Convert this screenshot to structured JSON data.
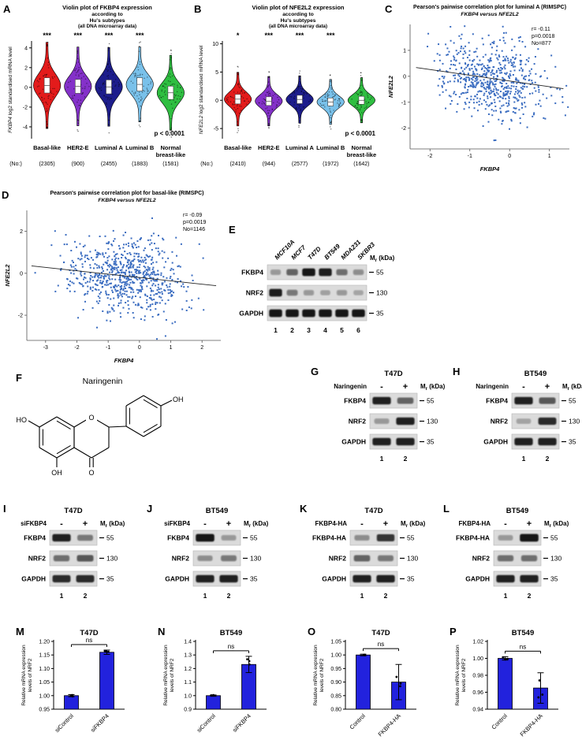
{
  "A": {
    "panel_label": "A",
    "chart_data": {
      "type": "violin",
      "title_lines": [
        "Violin plot of FKBP4 expression",
        "according to",
        "Hu's subtypes",
        "(all DNA microarray data)"
      ],
      "ylabel": "FKBP4 log2 standardised mRNA level",
      "categories": [
        "Basal-like",
        "HER2-E",
        "Luminal A",
        "Luminal B",
        "Normal|breast-like"
      ],
      "counts_label": "(No:)",
      "counts": [
        "(2305)",
        "(900)",
        "(2455)",
        "(1883)",
        "(1581)"
      ],
      "significance": [
        "***",
        "***",
        "***",
        "***",
        ""
      ],
      "p_text": "p < 0.0001",
      "colors": [
        "#e31b1b",
        "#8431c9",
        "#1d1d8c",
        "#79c1ea",
        "#2fbe41"
      ],
      "ylim": [
        -5.2,
        4.7
      ],
      "yticks": [
        -4,
        -2,
        0,
        2,
        4
      ],
      "means": [
        0.2,
        0.1,
        0.05,
        0.3,
        -0.55
      ],
      "sigmas": [
        1.15,
        1.05,
        1.05,
        1.0,
        1.0
      ],
      "seed": 11
    }
  },
  "B": {
    "panel_label": "B",
    "chart_data": {
      "type": "violin",
      "title_lines": [
        "Violin plot of NFE2L2 expression",
        "according to",
        "Hu's subtypes",
        "(all DNA microarray data)"
      ],
      "ylabel": "NFE2L2 log2 standardised mRNA level",
      "categories": [
        "Basal-like",
        "HER2-E",
        "Luminal A",
        "Luminal B",
        "Normal|breast-like"
      ],
      "counts_label": "(No:)",
      "counts": [
        "(2410)",
        "(944)",
        "(2577)",
        "(1972)",
        "(1642)"
      ],
      "significance": [
        "*",
        "***",
        "***",
        "***",
        ""
      ],
      "p_text": "p < 0.0001",
      "colors": [
        "#e31b1b",
        "#8431c9",
        "#1d1d8c",
        "#79c1ea",
        "#2fbe41"
      ],
      "ylim": [
        -6.8,
        10.5
      ],
      "yticks": [
        -5,
        0,
        5,
        10
      ],
      "means": [
        0.2,
        -0.15,
        0.15,
        -0.3,
        0.0
      ],
      "sigmas": [
        1.25,
        1.15,
        1.1,
        1.05,
        1.05
      ],
      "seed": 23
    }
  },
  "C": {
    "panel_label": "C",
    "chart_data": {
      "type": "scatter",
      "title_lines": [
        "Pearson's pairwise correlation plot for luminal A (RIMSPC)",
        "FKBP4 versus NFE2L2"
      ],
      "stats": [
        "r= -0.11",
        "p=0.0018",
        "No=877"
      ],
      "xlabel": "FKBP4",
      "ylabel": "NFE2L2",
      "xlim": [
        -2.5,
        1.5
      ],
      "ylim": [
        -2.8,
        2.0
      ],
      "xticks": [
        -2,
        -1,
        0,
        1
      ],
      "yticks": [
        -2,
        -1,
        0,
        1
      ],
      "n_points": 620,
      "x_mean": -0.45,
      "x_sd": 0.62,
      "slope": -0.22,
      "intercept": -0.18,
      "noise_sd": 0.75,
      "point_color": "#3a6cc0",
      "seed": 7
    }
  },
  "D": {
    "panel_label": "D",
    "chart_data": {
      "type": "scatter",
      "title_lines": [
        "Pearson's pairwise correlation plot for basal-like (RIMSPC)",
        "FKBP4 versus NFE2L2"
      ],
      "stats": [
        "r= -0.09",
        "p=0.0019",
        "No=1146"
      ],
      "xlabel": "FKBP4",
      "ylabel": "NFE2L2",
      "xlim": [
        -3.6,
        2.6
      ],
      "ylim": [
        -3.2,
        3.0
      ],
      "xticks": [
        -3,
        -2,
        -1,
        0,
        1,
        2
      ],
      "yticks": [
        -2,
        0,
        2
      ],
      "n_points": 720,
      "x_mean": -0.5,
      "x_sd": 0.95,
      "slope": -0.16,
      "intercept": -0.2,
      "noise_sd": 0.9,
      "point_color": "#3a6cc0",
      "seed": 17
    }
  },
  "E": {
    "panel_label": "E",
    "blot": {
      "cell_lines": [
        "MCF10A",
        "MCF7",
        "T47D",
        "BT549",
        "MDA231",
        "SKBR3"
      ],
      "mr": {
        "main": "M",
        "sub": "r",
        "rest": " (kDa)"
      },
      "rows": [
        {
          "name": "FKBP4",
          "mw": "55",
          "bands": [
            0.3,
            0.55,
            0.95,
            0.92,
            0.5,
            0.35
          ]
        },
        {
          "name": "NRF2",
          "mw": "130",
          "bands": [
            0.92,
            0.45,
            0.3,
            0.22,
            0.3,
            0.2
          ]
        },
        {
          "name": "GAPDH",
          "mw": "35",
          "bands": [
            0.95,
            0.95,
            0.95,
            0.95,
            0.95,
            0.95
          ]
        }
      ],
      "lane_numbers": [
        "1",
        "2",
        "3",
        "4",
        "5",
        "6"
      ]
    }
  },
  "F": {
    "panel_label": "F",
    "molecule": {
      "title": "Naringenin",
      "labels": {
        "ho": "HO",
        "oh5": "OH",
        "ketone": "O",
        "ring_o": "O",
        "oh4": "OH"
      }
    }
  },
  "G": {
    "panel_label": "G",
    "blot": {
      "title": "T47D",
      "condition_label": "Naringenin",
      "conditions": [
        "-",
        "+"
      ],
      "mr": {
        "main": "M",
        "sub": "r",
        "rest": " (kDa)"
      },
      "rows": [
        {
          "name": "FKBP4",
          "mw": "55",
          "bands": [
            0.9,
            0.55
          ]
        },
        {
          "name": "NRF2",
          "mw": "130",
          "bands": [
            0.3,
            0.9
          ]
        },
        {
          "name": "GAPDH",
          "mw": "35",
          "bands": [
            0.9,
            0.9
          ]
        }
      ],
      "lane_numbers": [
        "1",
        "2"
      ]
    }
  },
  "H": {
    "panel_label": "H",
    "blot": {
      "title": "BT549",
      "condition_label": "Naringenin",
      "conditions": [
        "-",
        "+"
      ],
      "mr": {
        "main": "M",
        "sub": "r",
        "rest": " (kDa)"
      },
      "rows": [
        {
          "name": "FKBP4",
          "mw": "55",
          "bands": [
            0.9,
            0.6
          ]
        },
        {
          "name": "NRF2",
          "mw": "130",
          "bands": [
            0.25,
            0.85
          ]
        },
        {
          "name": "GAPDH",
          "mw": "35",
          "bands": [
            0.9,
            0.9
          ]
        }
      ],
      "lane_numbers": [
        "1",
        "2"
      ]
    }
  },
  "I": {
    "panel_label": "I",
    "blot": {
      "title": "T47D",
      "condition_label": "siFKBP4",
      "conditions": [
        "-",
        "+"
      ],
      "mr": {
        "main": "M",
        "sub": "r",
        "rest": " (kDa)"
      },
      "rows": [
        {
          "name": "FKBP4",
          "mw": "55",
          "bands": [
            0.9,
            0.45
          ]
        },
        {
          "name": "NRF2",
          "mw": "130",
          "bands": [
            0.5,
            0.6
          ]
        },
        {
          "name": "GAPDH",
          "mw": "35",
          "bands": [
            0.85,
            0.85
          ]
        }
      ],
      "lane_numbers": [
        "1",
        "2"
      ]
    }
  },
  "J": {
    "panel_label": "J",
    "blot": {
      "title": "BT549",
      "condition_label": "siFKBP4",
      "conditions": [
        "-",
        "+"
      ],
      "mr": {
        "main": "M",
        "sub": "r",
        "rest": " (kDa)"
      },
      "rows": [
        {
          "name": "FKBP4",
          "mw": "55",
          "bands": [
            0.95,
            0.3
          ]
        },
        {
          "name": "NRF2",
          "mw": "130",
          "bands": [
            0.35,
            0.45
          ]
        },
        {
          "name": "GAPDH",
          "mw": "35",
          "bands": [
            0.9,
            0.9
          ]
        }
      ],
      "lane_numbers": [
        "1",
        "2"
      ]
    }
  },
  "K": {
    "panel_label": "K",
    "blot": {
      "title": "T47D",
      "condition_label": "FKBP4-HA",
      "conditions": [
        "-",
        "+"
      ],
      "mr": {
        "main": "M",
        "sub": "r",
        "rest": " (kDa)"
      },
      "rows": [
        {
          "name": "FKBP4-HA",
          "mw": "55",
          "bands": [
            0.35,
            0.8
          ]
        },
        {
          "name": "NRF2",
          "mw": "130",
          "bands": [
            0.55,
            0.45
          ]
        },
        {
          "name": "GAPDH",
          "mw": "35",
          "bands": [
            0.9,
            0.9
          ]
        }
      ],
      "lane_numbers": [
        "1",
        "2"
      ]
    }
  },
  "L": {
    "panel_label": "L",
    "blot": {
      "title": "BT549",
      "condition_label": "FKBP4-HA",
      "conditions": [
        "-",
        "+"
      ],
      "mr": {
        "main": "M",
        "sub": "r",
        "rest": " (kDa)"
      },
      "rows": [
        {
          "name": "FKBP4-HA",
          "mw": "55",
          "bands": [
            0.3,
            0.95
          ]
        },
        {
          "name": "NRF2",
          "mw": "130",
          "bands": [
            0.5,
            0.5
          ]
        },
        {
          "name": "GAPDH",
          "mw": "35",
          "bands": [
            0.9,
            0.9
          ]
        }
      ],
      "lane_numbers": [
        "1",
        "2"
      ]
    }
  },
  "M": {
    "panel_label": "M",
    "chart_data": {
      "type": "bar",
      "title": "T47D",
      "ylabel_lines": [
        "Relative mRNA expression",
        "levels of NRF2"
      ],
      "categories": [
        "siControl",
        "siFKBP4"
      ],
      "values": [
        1.0,
        1.16
      ],
      "errors": [
        0.004,
        0.008
      ],
      "ylim": [
        0.95,
        1.2
      ],
      "yticks": [
        0.95,
        1.0,
        1.05,
        1.1,
        1.15,
        1.2
      ],
      "ytick_labels": [
        "0.95",
        "1.00",
        "1.05",
        "1.10",
        "1.15",
        "1.20"
      ],
      "sig": "ns",
      "bar_color": "#2222dd",
      "seed": 31
    }
  },
  "N": {
    "panel_label": "N",
    "chart_data": {
      "type": "bar",
      "title": "BT549",
      "ylabel_lines": [
        "Relative mRNA expression",
        "levels of NRF2"
      ],
      "categories": [
        "siControl",
        "siFKBP4"
      ],
      "values": [
        1.0,
        1.23
      ],
      "errors": [
        0.005,
        0.06
      ],
      "ylim": [
        0.9,
        1.4
      ],
      "yticks": [
        0.9,
        1.0,
        1.1,
        1.2,
        1.3,
        1.4
      ],
      "ytick_labels": [
        "0.9",
        "1.0",
        "1.1",
        "1.2",
        "1.3",
        "1.4"
      ],
      "sig": "ns",
      "bar_color": "#2222dd",
      "seed": 37
    }
  },
  "O": {
    "panel_label": "O",
    "chart_data": {
      "type": "bar",
      "title": "T47D",
      "ylabel_lines": [
        "Relative mRNA expression",
        "levels of NRF2"
      ],
      "categories": [
        "Control",
        "FKBP4-HA"
      ],
      "values": [
        1.0,
        0.9
      ],
      "errors": [
        0.003,
        0.065
      ],
      "ylim": [
        0.8,
        1.05
      ],
      "yticks": [
        0.8,
        0.85,
        0.9,
        0.95,
        1.0,
        1.05
      ],
      "ytick_labels": [
        "0.80",
        "0.85",
        "0.90",
        "0.95",
        "1.00",
        "1.05"
      ],
      "sig": "ns",
      "bar_color": "#2222dd",
      "seed": 41
    }
  },
  "P": {
    "panel_label": "P",
    "chart_data": {
      "type": "bar",
      "title": "BT549",
      "ylabel_lines": [
        "Relative mRNA expression",
        "levels of NRF2"
      ],
      "categories": [
        "Control",
        "FKBP4-HA"
      ],
      "values": [
        1.0,
        0.965
      ],
      "errors": [
        0.002,
        0.018
      ],
      "ylim": [
        0.94,
        1.02
      ],
      "yticks": [
        0.94,
        0.96,
        0.98,
        1.0,
        1.02
      ],
      "ytick_labels": [
        "0.94",
        "0.96",
        "0.98",
        "1.00",
        "1.02"
      ],
      "sig": "ns",
      "bar_color": "#2222dd",
      "seed": 43
    }
  }
}
